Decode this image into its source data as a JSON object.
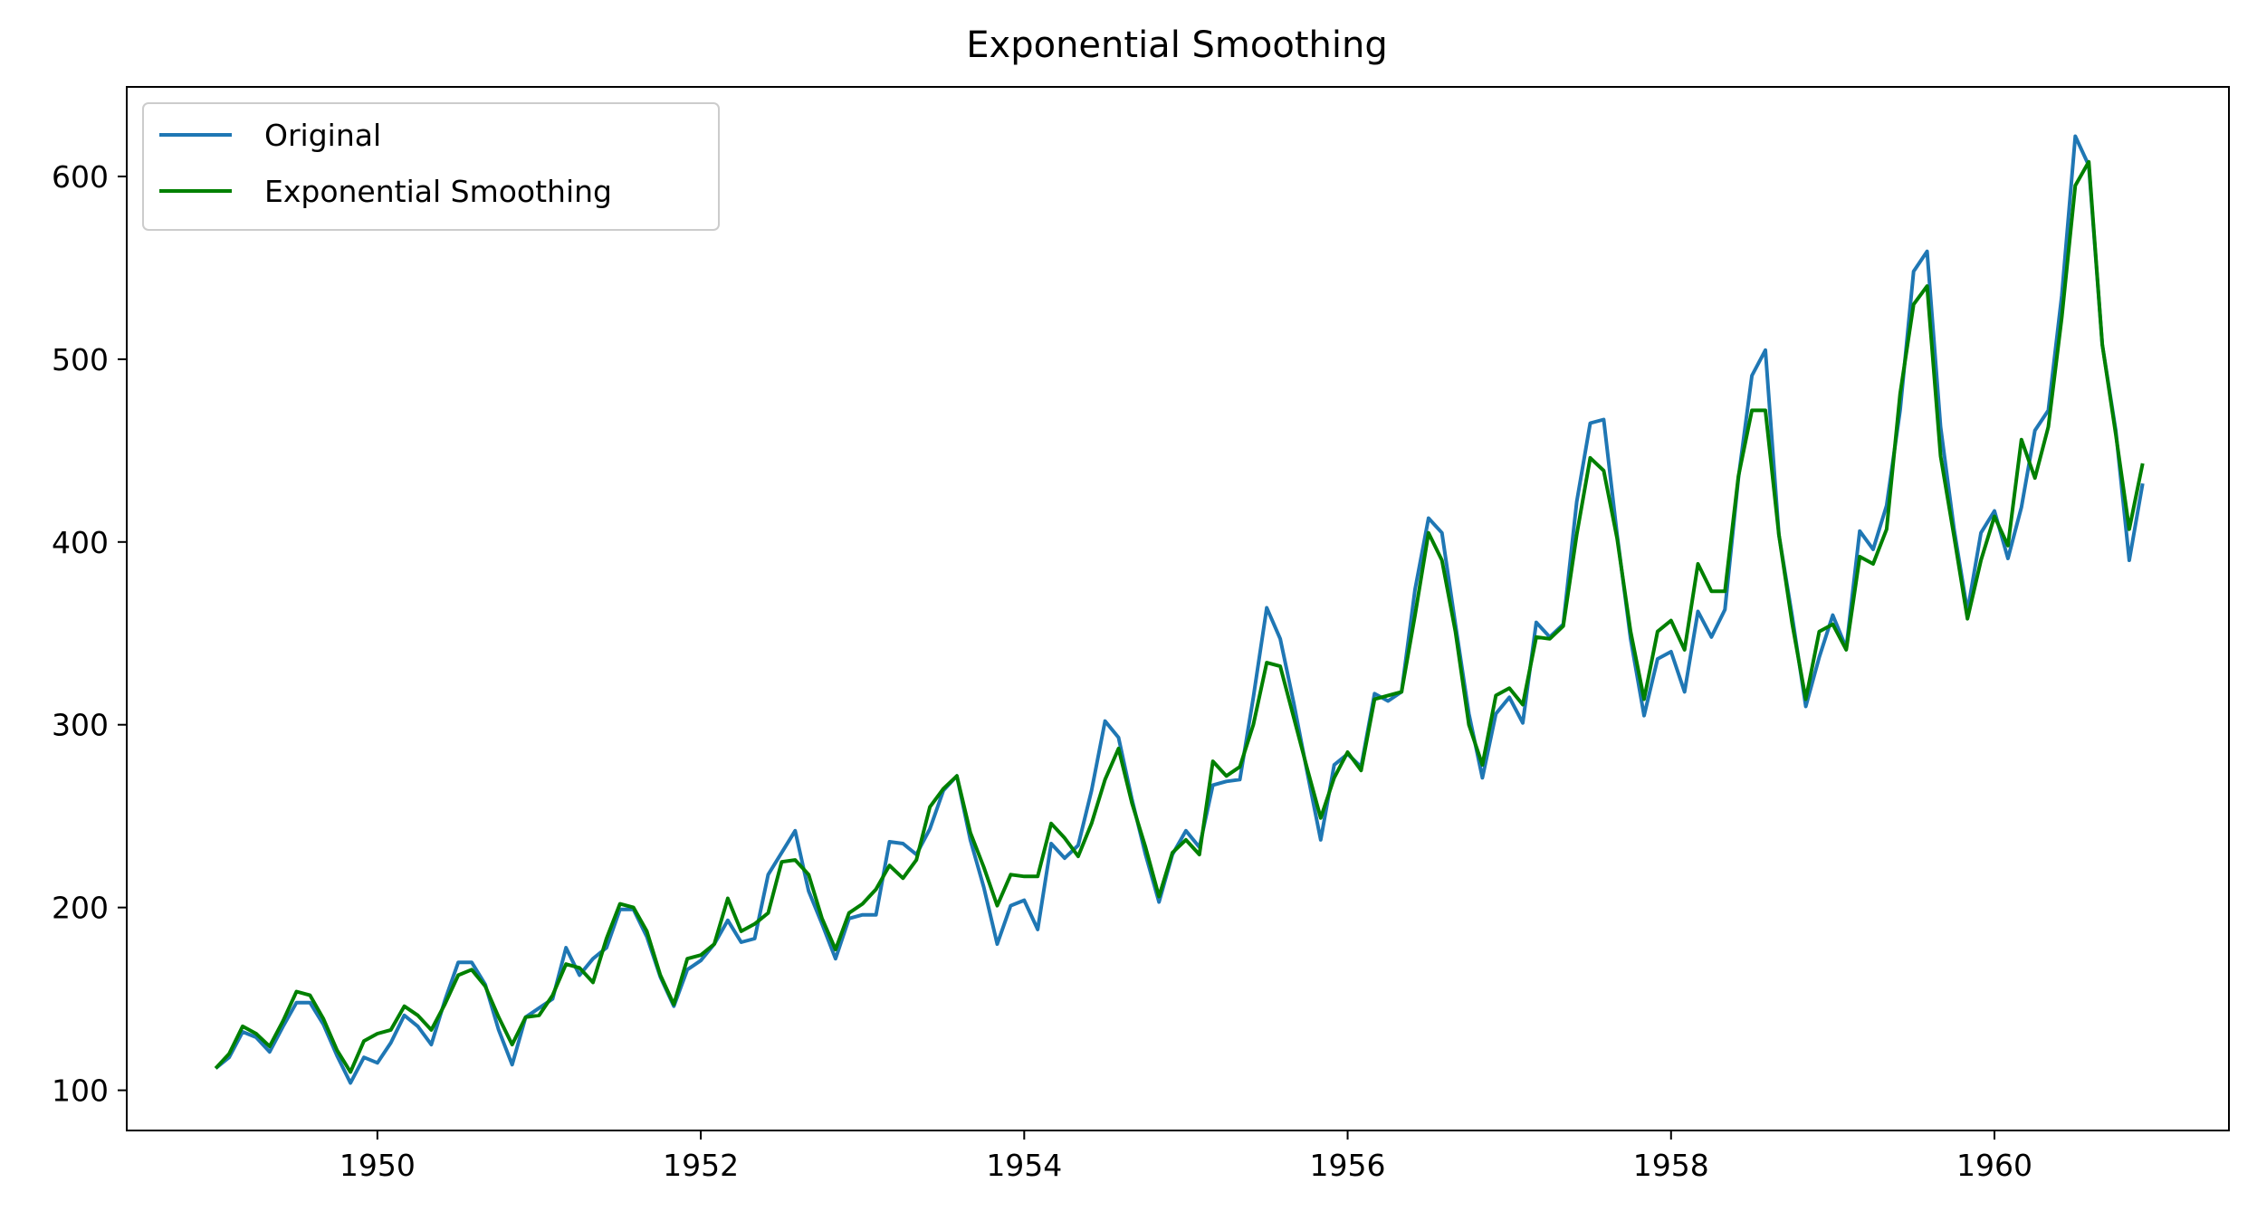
{
  "chart_data": {
    "type": "line",
    "title": "Exponential Smoothing",
    "xlabel": "",
    "ylabel": "",
    "xlim": [
      1948.45,
      1961.45
    ],
    "ylim": [
      78,
      649
    ],
    "x_ticks": [
      1950,
      1952,
      1954,
      1956,
      1958,
      1960
    ],
    "y_ticks": [
      100,
      200,
      300,
      400,
      500,
      600
    ],
    "legend_position": "top-left",
    "grid": false,
    "x_start_year": 1949,
    "x_step_months": 1,
    "series": [
      {
        "name": "Original",
        "color": "#1f77b4",
        "values": [
          112,
          118,
          132,
          129,
          121,
          135,
          148,
          148,
          136,
          119,
          104,
          118,
          115,
          126,
          141,
          135,
          125,
          149,
          170,
          170,
          158,
          133,
          114,
          140,
          145,
          150,
          178,
          163,
          172,
          178,
          199,
          199,
          184,
          162,
          146,
          166,
          171,
          180,
          193,
          181,
          183,
          218,
          230,
          242,
          209,
          191,
          172,
          194,
          196,
          196,
          236,
          235,
          229,
          243,
          264,
          272,
          237,
          211,
          180,
          201,
          204,
          188,
          235,
          227,
          234,
          264,
          302,
          293,
          259,
          229,
          203,
          229,
          242,
          233,
          267,
          269,
          270,
          315,
          364,
          347,
          312,
          274,
          237,
          278,
          284,
          277,
          317,
          313,
          318,
          374,
          413,
          405,
          355,
          306,
          271,
          306,
          315,
          301,
          356,
          348,
          355,
          422,
          465,
          467,
          404,
          347,
          305,
          336,
          340,
          318,
          362,
          348,
          363,
          435,
          491,
          505,
          404,
          359,
          310,
          337,
          360,
          342,
          406,
          396,
          420,
          472,
          548,
          559,
          463,
          407,
          362,
          405,
          417,
          391,
          419,
          461,
          472,
          535,
          622,
          606,
          508,
          461,
          390,
          432
        ]
      },
      {
        "name": "Exponential Smoothing",
        "color": "#008000",
        "values": [
          112,
          120,
          135,
          131,
          124,
          138,
          154,
          152,
          139,
          122,
          110,
          127,
          131,
          133,
          146,
          141,
          133,
          147,
          163,
          166,
          157,
          140,
          125,
          140,
          141,
          152,
          169,
          167,
          159,
          183,
          202,
          200,
          187,
          163,
          147,
          172,
          174,
          180,
          205,
          187,
          191,
          197,
          225,
          226,
          218,
          194,
          177,
          197,
          202,
          210,
          223,
          216,
          226,
          255,
          265,
          272,
          241,
          222,
          201,
          218,
          217,
          217,
          246,
          238,
          228,
          246,
          270,
          287,
          257,
          233,
          206,
          230,
          237,
          229,
          280,
          272,
          277,
          300,
          334,
          332,
          304,
          276,
          249,
          271,
          285,
          275,
          314,
          316,
          318,
          360,
          405,
          390,
          351,
          300,
          278,
          316,
          320,
          311,
          348,
          347,
          354,
          404,
          446,
          439,
          402,
          351,
          314,
          351,
          357,
          341,
          388,
          373,
          373,
          436,
          472,
          472,
          404,
          355,
          314,
          351,
          355,
          341,
          392,
          388,
          407,
          481,
          530,
          540,
          447,
          403,
          358,
          390,
          414,
          398,
          456,
          435,
          463,
          523,
          595,
          608,
          508,
          459,
          407,
          443
        ]
      }
    ]
  }
}
